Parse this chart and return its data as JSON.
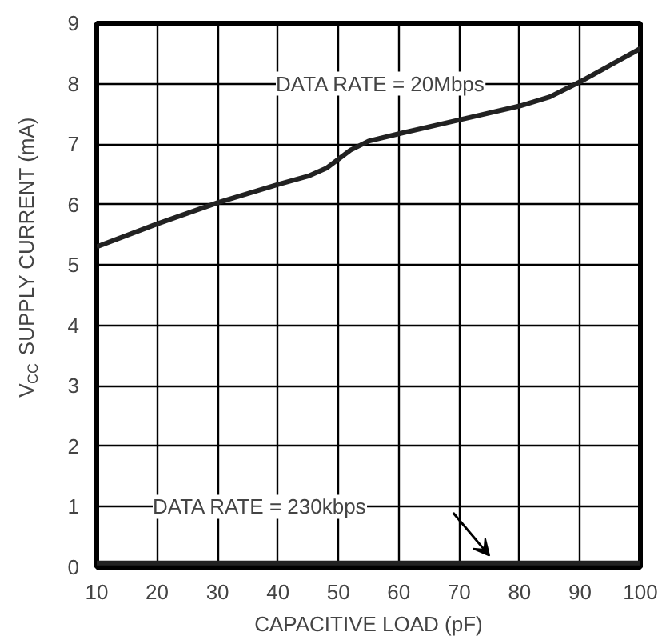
{
  "chart_data": {
    "type": "line",
    "xlabel": "CAPACITIVE LOAD (pF)",
    "ylabel": "V$_{CC}$ SUPPLY CURRENT (mA)",
    "xlim": [
      10,
      100
    ],
    "xticks": [
      10,
      20,
      30,
      40,
      50,
      60,
      70,
      80,
      90,
      100
    ],
    "ylim": [
      0,
      9
    ],
    "yticks": [
      0,
      1,
      2,
      3,
      4,
      5,
      6,
      7,
      8,
      9
    ],
    "grid": true,
    "series": [
      {
        "name": "DATA RATE = 20Mbps",
        "color": "#222222",
        "x": [
          10,
          20,
          30,
          40,
          45,
          48,
          52,
          55,
          60,
          70,
          80,
          85,
          90,
          100
        ],
        "values": [
          5.3,
          5.68,
          6.03,
          6.33,
          6.47,
          6.6,
          6.9,
          7.05,
          7.17,
          7.4,
          7.63,
          7.78,
          8.03,
          8.58
        ]
      },
      {
        "name": "DATA RATE = 230kbps",
        "color": "#222222",
        "x": [
          10,
          40,
          70,
          100
        ],
        "values": [
          0.07,
          0.07,
          0.07,
          0.07
        ]
      }
    ]
  }
}
